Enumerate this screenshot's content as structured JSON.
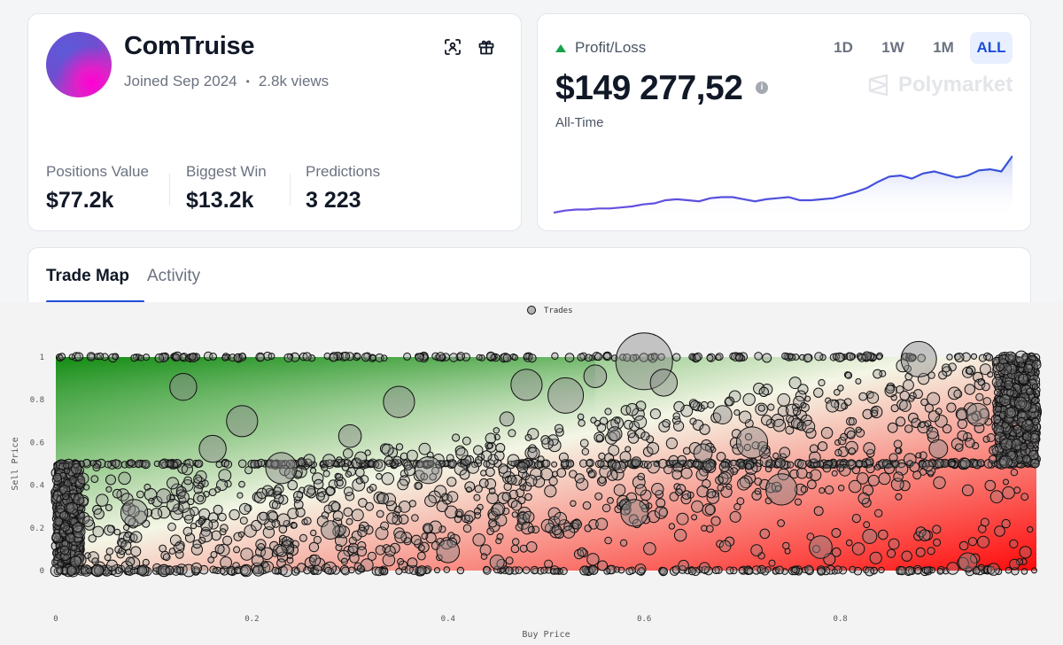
{
  "profile": {
    "name": "ComTruise",
    "joined": "Joined Sep 2024",
    "separator": "•",
    "views": "2.8k views",
    "stats": [
      {
        "label": "Positions Value",
        "value": "$77.2k"
      },
      {
        "label": "Biggest Win",
        "value": "$13.2k"
      },
      {
        "label": "Predictions",
        "value": "3 223"
      }
    ]
  },
  "pnl": {
    "label": "Profit/Loss",
    "value": "$149 277,52",
    "info": "i",
    "period": "All-Time",
    "ranges": [
      "1D",
      "1W",
      "1M",
      "ALL"
    ],
    "active_range": "ALL",
    "watermark": "Polymarket",
    "line_color": "#6d4fe0",
    "line_color_end": "#3451d9"
  },
  "tabs": [
    {
      "label": "Trade Map",
      "active": true
    },
    {
      "label": "Activity",
      "active": false
    }
  ],
  "trade_map": {
    "legend": "Trades",
    "xlabel": "Buy Price",
    "ylabel": "Sell Price",
    "x_ticks": [
      "0",
      "0.2",
      "0.4",
      "0.6",
      "0.8"
    ],
    "y_ticks": [
      "0",
      "0.2",
      "0.4",
      "0.6",
      "0.8",
      "1"
    ]
  },
  "chart_data": {
    "type": "scatter",
    "title": "",
    "legend": [
      "Trades"
    ],
    "legend_position": "top-center",
    "xlabel": "Buy Price",
    "ylabel": "Sell Price",
    "xlim": [
      0,
      1
    ],
    "ylim": [
      0,
      1
    ],
    "grid": false,
    "background": "diagonal gradient: green (profit, sell > buy) top-left to red (loss, sell < buy) bottom-right",
    "series": [
      {
        "name": "Trades",
        "points": [
          [
            0.6,
            0.98
          ],
          [
            0.88,
            0.99
          ],
          [
            0.52,
            0.82
          ],
          [
            0.16,
            0.57
          ],
          [
            0.35,
            0.79
          ],
          [
            0.46,
            0.71
          ],
          [
            0.68,
            0.73
          ],
          [
            0.55,
            0.91
          ],
          [
            0.62,
            0.88
          ],
          [
            0.23,
            0.48
          ],
          [
            0.11,
            0.35
          ],
          [
            0.28,
            0.19
          ],
          [
            0.4,
            0.09
          ],
          [
            0.59,
            0.27
          ],
          [
            0.74,
            0.38
          ],
          [
            0.83,
            0.16
          ],
          [
            0.9,
            0.57
          ],
          [
            0.94,
            0.73
          ],
          [
            0.38,
            0.47
          ],
          [
            0.71,
            0.6
          ],
          [
            0.45,
            0.04
          ],
          [
            0.93,
            0.04
          ],
          [
            0.78,
            0.11
          ],
          [
            0.13,
            0.86
          ],
          [
            0.48,
            0.87
          ],
          [
            0.57,
            0.64
          ],
          [
            0.66,
            0.55
          ],
          [
            0.3,
            0.63
          ],
          [
            0.08,
            0.27
          ],
          [
            0.19,
            0.7
          ]
        ]
      }
    ],
    "bands": [
      {
        "y": 0.5,
        "x_range": [
          0,
          1
        ],
        "note": "dense horizontal row of trades at sell price 0.5"
      },
      {
        "y": 1.0,
        "x_range": [
          0,
          1
        ],
        "note": "dense row of trades at sell price 1"
      },
      {
        "y": 0.0,
        "x_range": [
          0,
          1
        ],
        "note": "dense row of trades at sell price 0"
      },
      {
        "x": 0.0,
        "y_range": [
          0,
          0.5
        ],
        "note": "dense column of trades at buy price near 0"
      },
      {
        "x": 1.0,
        "y_range": [
          0.5,
          1.0
        ],
        "note": "dense column of trades at buy price near 1"
      }
    ]
  },
  "pnl_chart_data": {
    "type": "area",
    "values": [
      0,
      2,
      3,
      3,
      4,
      4,
      5,
      6,
      8,
      9,
      12,
      13,
      12,
      11,
      14,
      15,
      15,
      13,
      11,
      13,
      14,
      15,
      12,
      12,
      13,
      14,
      17,
      20,
      24,
      30,
      35,
      36,
      33,
      38,
      40,
      37,
      34,
      36,
      41,
      42,
      40,
      55
    ]
  }
}
